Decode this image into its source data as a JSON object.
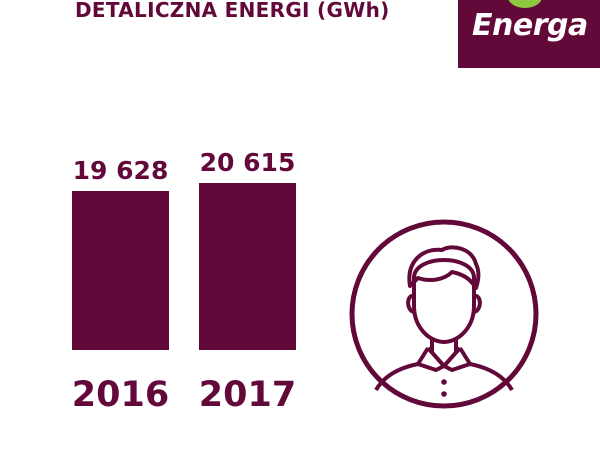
{
  "title": "DETALICZNA ENERGI (GWh)",
  "logo_text": "Energa",
  "colors": {
    "brand": "#62093a",
    "leaf": "#8dc63f"
  },
  "icon": "person-icon",
  "chart_data": {
    "type": "bar",
    "title": "DETALICZNA ENERGI (GWh)",
    "categories": [
      "2016",
      "2017"
    ],
    "values": [
      19628,
      20615
    ],
    "value_labels": [
      "19 628",
      "20 615"
    ],
    "ylim": [
      0,
      20615
    ],
    "grid": false,
    "legend": "none"
  }
}
